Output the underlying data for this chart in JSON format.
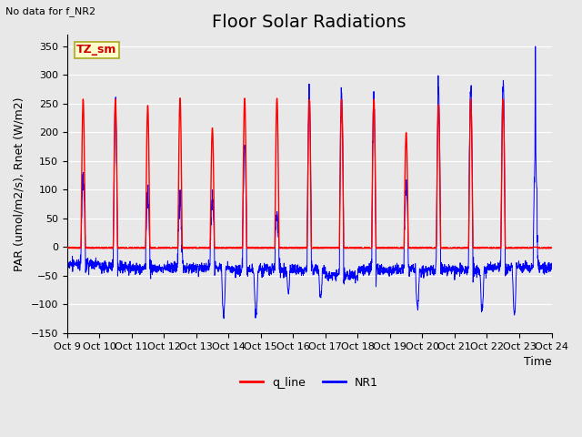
{
  "title": "Floor Solar Radiations",
  "top_left_text": "No data for f_NR2",
  "ylabel": "PAR (umol/m2/s), Rnet (W/m2)",
  "xlabel": "Time",
  "ylim": [
    -150,
    370
  ],
  "yticks": [
    -150,
    -100,
    -50,
    0,
    50,
    100,
    150,
    200,
    250,
    300,
    350
  ],
  "xtick_labels": [
    "Oct 9",
    "Oct 10",
    "Oct 11",
    "Oct 12",
    "Oct 13",
    "Oct 14",
    "Oct 15",
    "Oct 16",
    "Oct 17",
    "Oct 18",
    "Oct 19",
    "Oct 20",
    "Oct 21",
    "Oct 22",
    "Oct 23",
    "Oct 24"
  ],
  "n_days": 15,
  "points_per_day": 144,
  "legend_entries": [
    "q_line",
    "NR1"
  ],
  "legend_colors": [
    "#ff0000",
    "#0000ff"
  ],
  "text_box_label": "TZ_sm",
  "text_box_facecolor": "#ffffcc",
  "text_box_edgecolor": "#aaa820",
  "text_box_textcolor": "#cc0000",
  "bg_color": "#e8e8e8",
  "fig_bg_color": "#e8e8e8",
  "title_fontsize": 14,
  "label_fontsize": 9,
  "tick_fontsize": 8,
  "q_peaks": [
    258,
    258,
    247,
    260,
    208,
    260,
    260,
    258,
    258,
    258,
    200,
    248,
    258,
    258,
    0
  ],
  "nr1_day_peaks": [
    115,
    252,
    85,
    85,
    85,
    182,
    55,
    275,
    275,
    258,
    105,
    275,
    281,
    295,
    160
  ],
  "nr1_night_base": [
    -30,
    -35,
    -38,
    -35,
    -35,
    -40,
    -40,
    -40,
    -50,
    -40,
    -40,
    -40,
    -40,
    -35,
    -35
  ],
  "nr1_deep_dips": [
    0,
    0,
    0,
    0,
    -120,
    -115,
    -80,
    -90,
    0,
    0,
    -105,
    0,
    -110,
    -115,
    0
  ],
  "nr1_last_peak": 350
}
